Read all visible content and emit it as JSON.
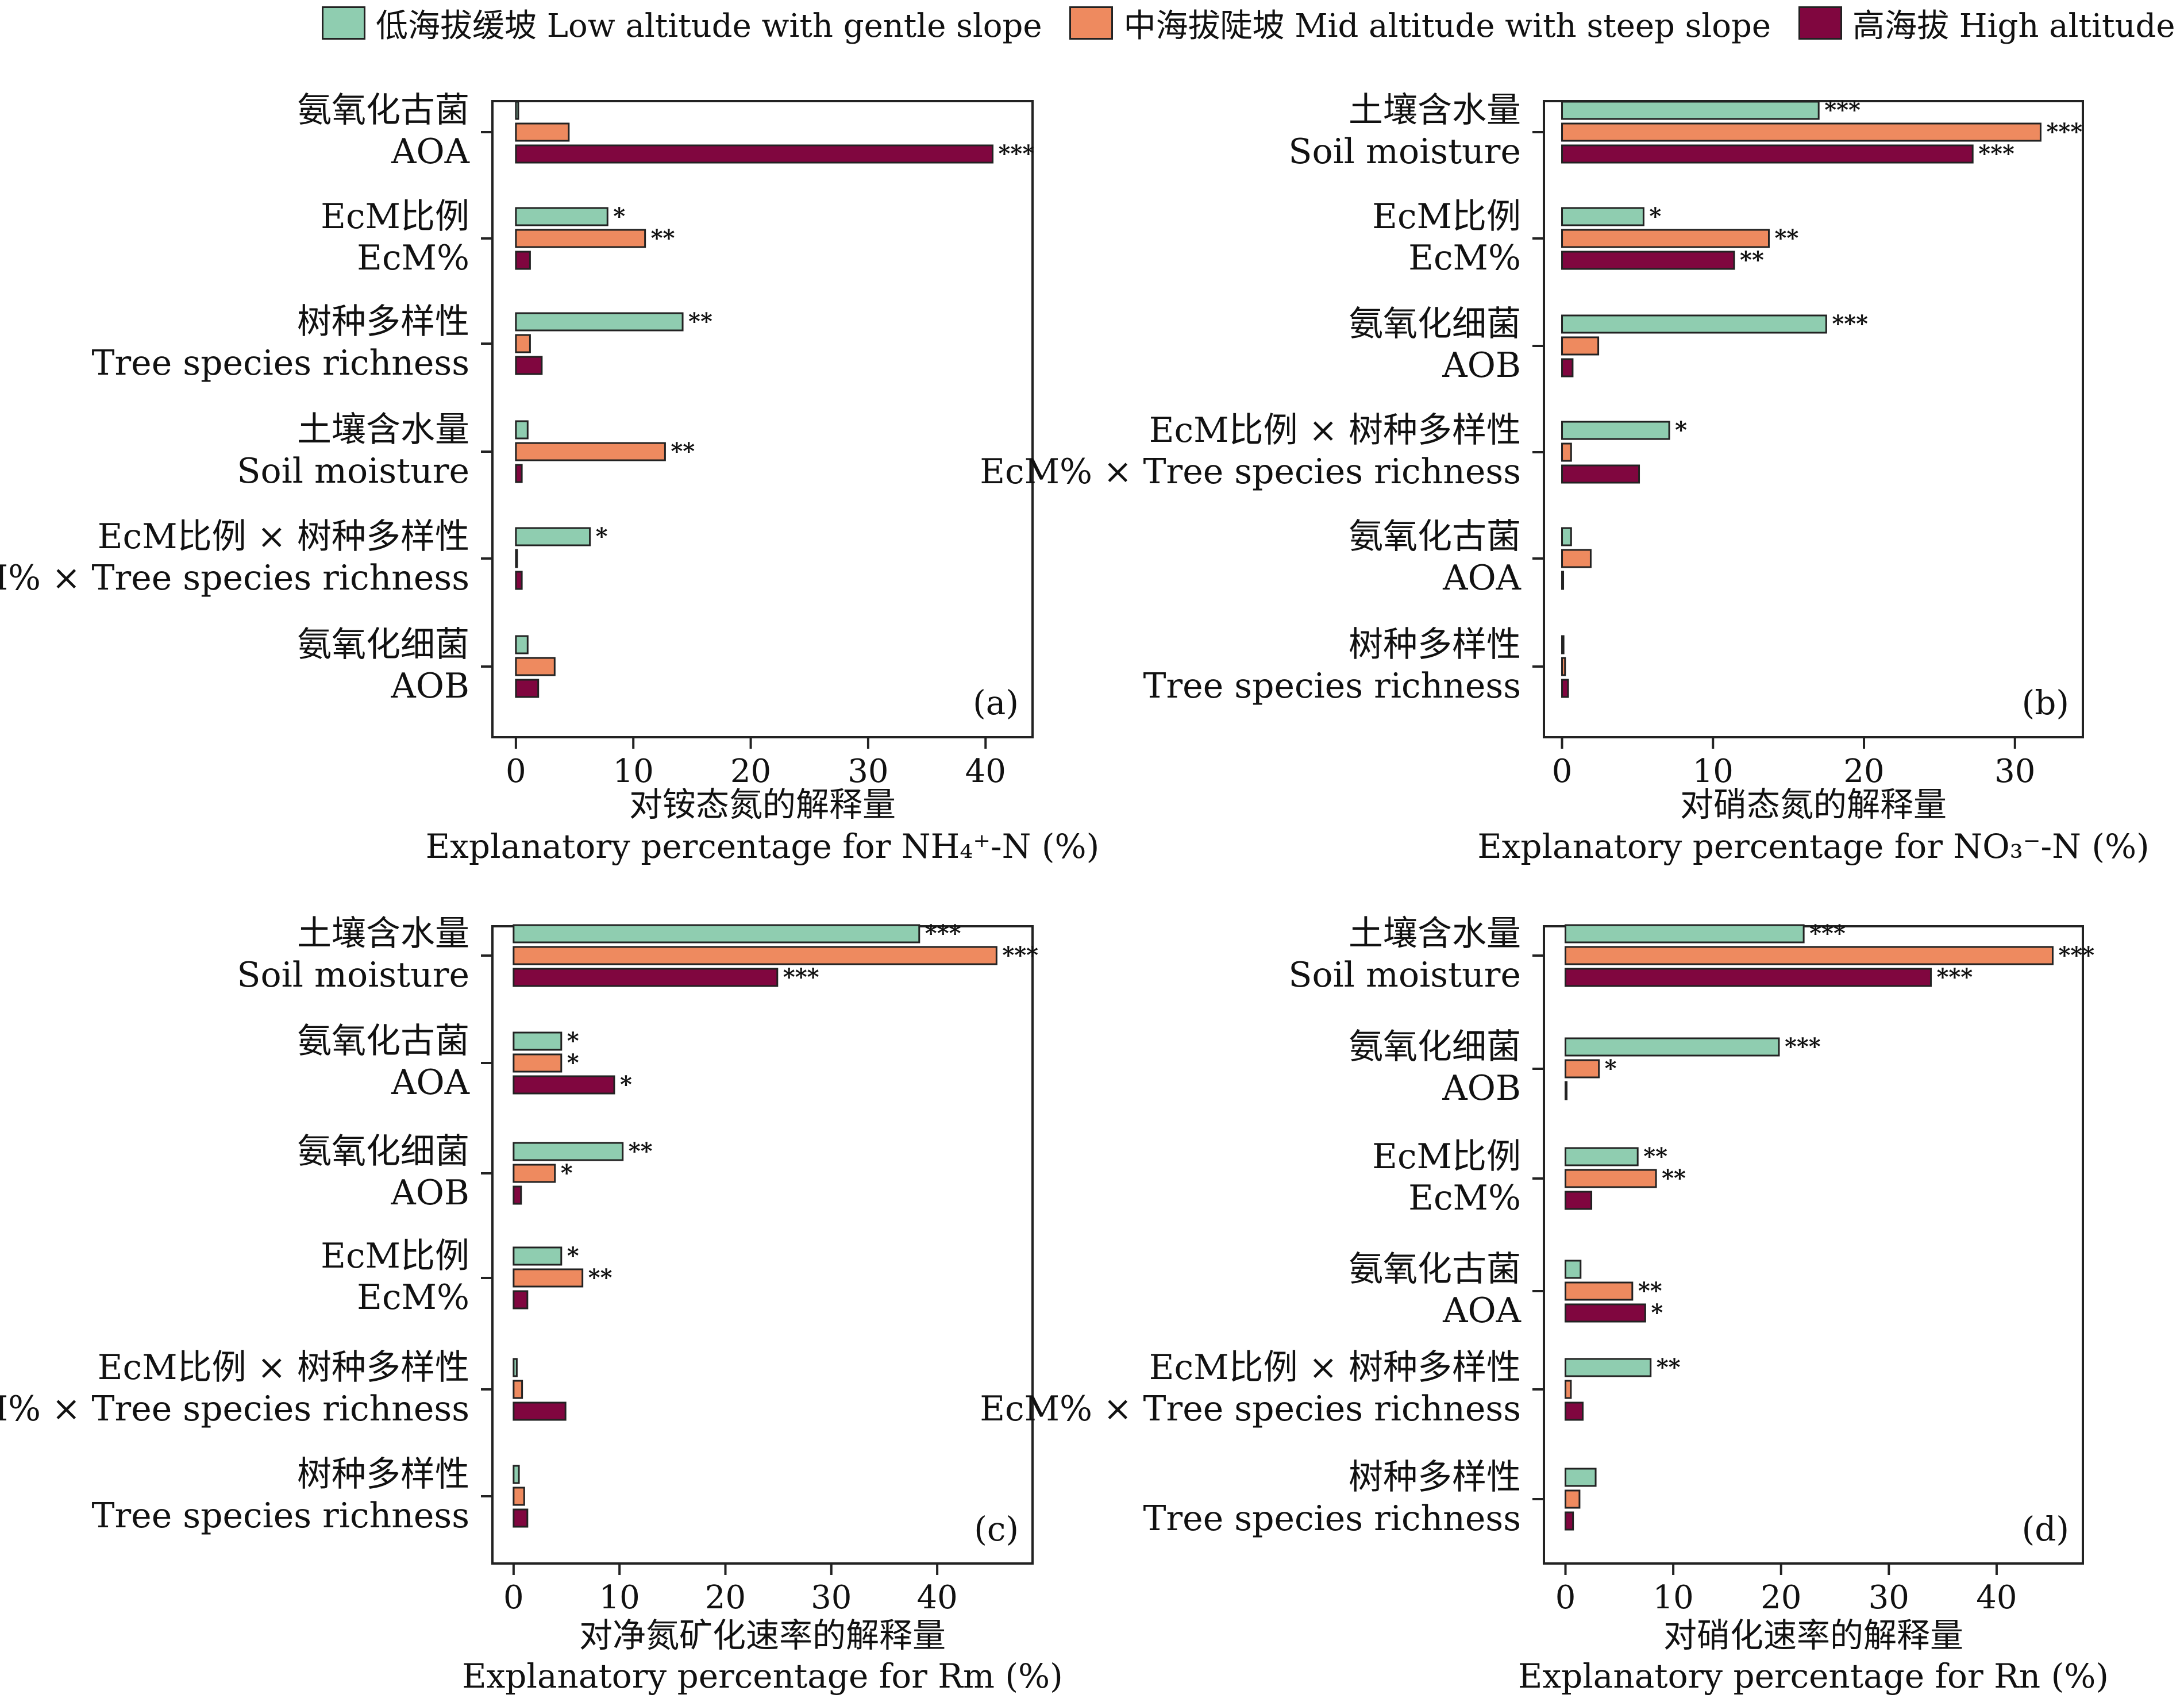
{
  "legend": {
    "series": [
      {
        "name": "低海拔缓坡 Low altitude with gentle slope",
        "color": "#8fcdb0"
      },
      {
        "name": "中海拔陡坡 Mid altitude with steep slope",
        "color": "#ee8a5f"
      },
      {
        "name": "高海拔 High altitude",
        "color": "#80063f"
      }
    ]
  },
  "chart_data": [
    {
      "type": "bar",
      "orientation": "horizontal",
      "panel_label": "(a)",
      "xlabel": [
        "对铵态氮的解释量",
        "Explanatory percentage for NH₄⁺-N (%)"
      ],
      "xlim": [
        -2,
        44
      ],
      "xticks": [
        0,
        10,
        20,
        30,
        40
      ],
      "categories": [
        [
          "氨氧化古菌",
          "AOA"
        ],
        [
          "EcM比例",
          "EcM%"
        ],
        [
          "树种多样性",
          "Tree species richness"
        ],
        [
          "土壤含水量",
          "Soil moisture"
        ],
        [
          "EcM比例 × 树种多样性",
          "EcM% × Tree species richness"
        ],
        [
          "氨氧化细菌",
          "AOB"
        ]
      ],
      "series": [
        {
          "name": "低海拔缓坡 Low altitude with gentle slope",
          "values": [
            0.2,
            7.8,
            14.2,
            1.0,
            6.3,
            1.0
          ],
          "sig": [
            "",
            "*",
            "**",
            "",
            "*",
            ""
          ]
        },
        {
          "name": "中海拔陡坡 Mid altitude with steep slope",
          "values": [
            4.5,
            11.0,
            1.2,
            12.7,
            0.1,
            3.3
          ],
          "sig": [
            "",
            "**",
            "",
            "**",
            "",
            ""
          ]
        },
        {
          "name": "高海拔 High altitude",
          "values": [
            40.6,
            1.2,
            2.2,
            0.5,
            0.5,
            1.9
          ],
          "sig": [
            "***",
            "",
            "",
            "",
            "",
            ""
          ]
        }
      ]
    },
    {
      "type": "bar",
      "orientation": "horizontal",
      "panel_label": "(b)",
      "xlabel": [
        "对硝态氮的解释量",
        "Explanatory percentage for NO₃⁻-N (%)"
      ],
      "xlim": [
        -1.2,
        34.5
      ],
      "xticks": [
        0,
        10,
        20,
        30
      ],
      "categories": [
        [
          "土壤含水量",
          "Soil moisture"
        ],
        [
          "EcM比例",
          "EcM%"
        ],
        [
          "氨氧化细菌",
          "AOB"
        ],
        [
          "EcM比例 × 树种多样性",
          "EcM% × Tree species richness"
        ],
        [
          "氨氧化古菌",
          "AOA"
        ],
        [
          "树种多样性",
          "Tree species richness"
        ]
      ],
      "series": [
        {
          "name": "低海拔缓坡 Low altitude with gentle slope",
          "values": [
            17.0,
            5.4,
            17.5,
            7.1,
            0.6,
            0.1
          ],
          "sig": [
            "***",
            "*",
            "***",
            "*",
            "",
            ""
          ]
        },
        {
          "name": "中海拔陡坡 Mid altitude with steep slope",
          "values": [
            31.7,
            13.7,
            2.4,
            0.6,
            1.9,
            0.2
          ],
          "sig": [
            "***",
            "**",
            "",
            "",
            "",
            ""
          ]
        },
        {
          "name": "高海拔 High altitude",
          "values": [
            27.2,
            11.4,
            0.7,
            5.1,
            0.0,
            0.4
          ],
          "sig": [
            "***",
            "**",
            "",
            "",
            "",
            ""
          ]
        }
      ]
    },
    {
      "type": "bar",
      "orientation": "horizontal",
      "panel_label": "(c)",
      "xlabel": [
        "对净氮矿化速率的解释量",
        "Explanatory percentage for Rm (%)"
      ],
      "xlim": [
        -2,
        49
      ],
      "xticks": [
        0,
        10,
        20,
        30,
        40
      ],
      "categories": [
        [
          "土壤含水量",
          "Soil moisture"
        ],
        [
          "氨氧化古菌",
          "AOA"
        ],
        [
          "氨氧化细菌",
          "AOB"
        ],
        [
          "EcM比例",
          "EcM%"
        ],
        [
          "EcM比例 × 树种多样性",
          "EcM% × Tree species richness"
        ],
        [
          "树种多样性",
          "Tree species richness"
        ]
      ],
      "series": [
        {
          "name": "低海拔缓坡 Low altitude with gentle slope",
          "values": [
            38.3,
            4.5,
            10.3,
            4.5,
            0.3,
            0.5
          ],
          "sig": [
            "***",
            "*",
            "**",
            "*",
            "",
            ""
          ]
        },
        {
          "name": "中海拔陡坡 Mid altitude with steep slope",
          "values": [
            45.6,
            4.5,
            3.9,
            6.5,
            0.8,
            1.0
          ],
          "sig": [
            "***",
            "*",
            "*",
            "**",
            "",
            ""
          ]
        },
        {
          "name": "高海拔 High altitude",
          "values": [
            24.9,
            9.5,
            0.7,
            1.3,
            4.9,
            1.3
          ],
          "sig": [
            "***",
            "*",
            "",
            "",
            "",
            ""
          ]
        }
      ]
    },
    {
      "type": "bar",
      "orientation": "horizontal",
      "panel_label": "(d)",
      "xlabel": [
        "对硝化速率的解释量",
        "Explanatory percentage for Rn (%)"
      ],
      "xlim": [
        -2,
        48
      ],
      "xticks": [
        0,
        10,
        20,
        30,
        40
      ],
      "categories": [
        [
          "土壤含水量",
          "Soil moisture"
        ],
        [
          "氨氧化细菌",
          "AOB"
        ],
        [
          "EcM比例",
          "EcM%"
        ],
        [
          "氨氧化古菌",
          "AOA"
        ],
        [
          "EcM比例 × 树种多样性",
          "EcM% × Tree species richness"
        ],
        [
          "树种多样性",
          "Tree species richness"
        ]
      ],
      "series": [
        {
          "name": "低海拔缓坡 Low altitude with gentle slope",
          "values": [
            22.1,
            19.8,
            6.7,
            1.4,
            7.9,
            2.8
          ],
          "sig": [
            "***",
            "***",
            "**",
            "",
            "**",
            ""
          ]
        },
        {
          "name": "中海拔陡坡 Mid altitude with steep slope",
          "values": [
            45.2,
            3.1,
            8.4,
            6.2,
            0.5,
            1.3
          ],
          "sig": [
            "***",
            "*",
            "**",
            "**",
            "",
            ""
          ]
        },
        {
          "name": "高海拔 High altitude",
          "values": [
            33.9,
            0.1,
            2.4,
            7.4,
            1.6,
            0.7
          ],
          "sig": [
            "***",
            "",
            "",
            "*",
            "",
            ""
          ]
        }
      ]
    }
  ]
}
